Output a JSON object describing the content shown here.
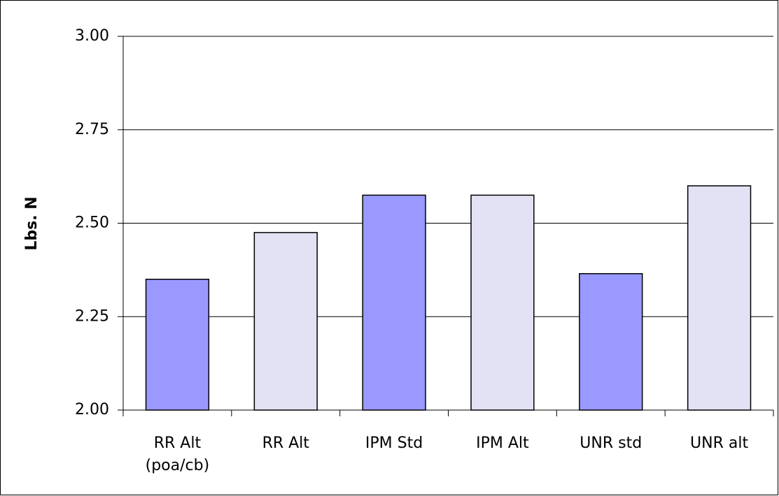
{
  "chart_data": {
    "type": "bar",
    "ylabel": "Lbs. N",
    "categories": [
      "RR Alt\n(poa/cb)",
      "RR Alt",
      "IPM Std",
      "IPM Alt",
      "UNR std",
      "UNR alt"
    ],
    "values": [
      2.35,
      2.475,
      2.575,
      2.575,
      2.365,
      2.6
    ],
    "colors": [
      "#9999ff",
      "#e2e2f4",
      "#9999ff",
      "#e2e2f4",
      "#9999ff",
      "#e2e2f4"
    ],
    "ylim": [
      2,
      3
    ],
    "yticks": [
      {
        "value": 2,
        "label": "2.00"
      },
      {
        "value": 2.25,
        "label": "2.25"
      },
      {
        "value": 2.5,
        "label": "2.50"
      },
      {
        "value": 2.75,
        "label": "2.75"
      },
      {
        "value": 3,
        "label": "3.00"
      }
    ],
    "grid": true
  }
}
